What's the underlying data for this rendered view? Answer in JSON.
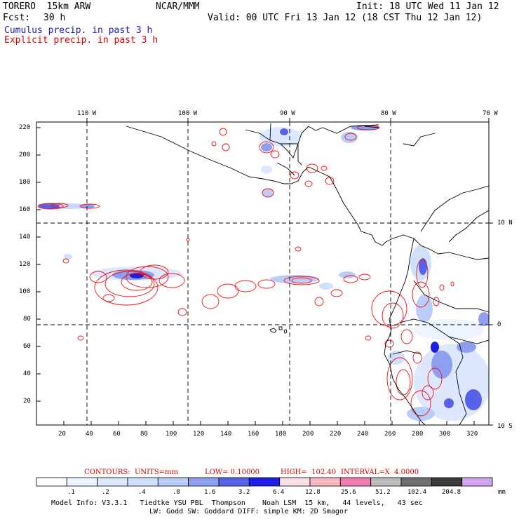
{
  "header": {
    "model": "TORERO  15km ARW",
    "org": "NCAR/MMM",
    "init": "Init: 18 UTC Wed 11 Jan 12",
    "fcst_label": "Fcst:",
    "fcst_value": "30 h",
    "valid": "Valid: 00 UTC Fri 13 Jan 12 (18 CST Thu 12 Jan 12)",
    "line_cumulus": "Cumulus precip. in past 3 h",
    "line_explicit": "Explicit precip. in past 3 h",
    "color_cumulus": "#1a1aa8",
    "color_explicit": "#dd0000"
  },
  "map": {
    "lon_labels": [
      "110 W",
      "100 W",
      "90 W",
      "80 W",
      "70 W"
    ],
    "lat_labels": [
      "10 N",
      "0",
      "10 S"
    ],
    "x_ticks": [
      "20",
      "40",
      "60",
      "80",
      "100",
      "120",
      "140",
      "160",
      "180",
      "200",
      "220",
      "240",
      "260",
      "280",
      "300",
      "320"
    ],
    "y_ticks": [
      "220",
      "200",
      "180",
      "160",
      "140",
      "120",
      "100",
      "80",
      "60",
      "40",
      "20"
    ]
  },
  "contours_caption": {
    "units": "CONTOURS:  UNITS=mm",
    "low": "LOW= 0.10000",
    "high": "HIGH=  102.40",
    "interval": "INTERVAL=X  4.0000"
  },
  "colorbar": {
    "labels": [
      ".1",
      ".2",
      ".4",
      ".8",
      "1.6",
      "3.2",
      "6.4",
      "12.8",
      "25.6",
      "51.2",
      "102.4",
      "204.8"
    ],
    "unit": "mm",
    "colors": [
      "#ffffff",
      "#eef4ff",
      "#dde8ff",
      "#cfe0fb",
      "#b9cdf8",
      "#8f9ff0",
      "#5862e8",
      "#1d1fe6",
      "#fbe1e3",
      "#f9b6c3",
      "#f37ab0",
      "#bcbcbc",
      "#707070",
      "#3b3b3b",
      "#d2a3f0"
    ]
  },
  "footer": {
    "line1": "Model Info: V3.3.1   Tiedtke YSU PBL  Thompson    Noah LSM  15 km,   44 levels,   43 sec",
    "line2": "LW: Godd SW: Goddard DIFF: simple KM: 2D Smagor"
  }
}
